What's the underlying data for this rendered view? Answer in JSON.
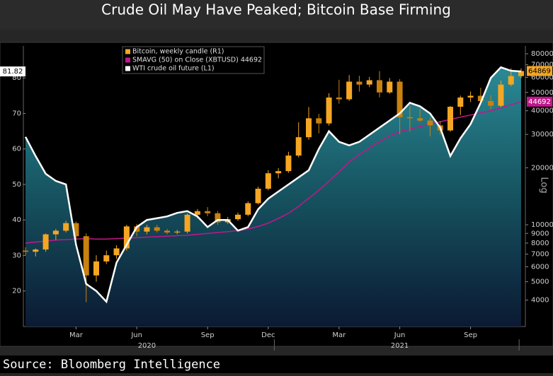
{
  "title": "Crude Oil May Have Peaked; Bitcoin Base Firming",
  "source": "Source: Bloomberg Intelligence",
  "chart_data": {
    "type": "combo",
    "categories": [
      null,
      null,
      null,
      null,
      null,
      "Mar",
      null,
      null,
      null,
      null,
      null,
      "Jun",
      null,
      null,
      null,
      null,
      null,
      null,
      "Sep",
      null,
      null,
      null,
      null,
      null,
      "Dec",
      null,
      null,
      null,
      null,
      null,
      null,
      "Mar",
      null,
      null,
      null,
      null,
      null,
      "Jun",
      null,
      null,
      null,
      null,
      null,
      null,
      "Sep",
      null,
      null,
      null,
      null,
      null
    ],
    "years": [
      "2020",
      "2021"
    ],
    "ylim": [
      10,
      89
    ],
    "yticks": [
      20,
      30,
      40,
      50,
      60,
      70,
      80
    ],
    "y2lim": [
      2900,
      88000
    ],
    "y2_scale": "log",
    "y2_label": "Log",
    "y2ticks": [
      4000,
      5000,
      6000,
      7000,
      8000,
      9000,
      10000,
      20000,
      30000,
      40000,
      50000,
      60000,
      70000,
      80000
    ],
    "series": [
      {
        "name": "WTI crude oil future (L1)",
        "type": "area",
        "axis": "y",
        "color": "#ffffff",
        "values": [
          63.4,
          58,
          53,
          51,
          50,
          33,
          22,
          20,
          17,
          28,
          33,
          38,
          40,
          40.5,
          41,
          42,
          42.5,
          41,
          38,
          40,
          40,
          37,
          38,
          43,
          46,
          48,
          50,
          52,
          54,
          60,
          65,
          62,
          61,
          62,
          64,
          66,
          68,
          70,
          73,
          72,
          70,
          66,
          58,
          63,
          67,
          73,
          80,
          83,
          82,
          81.82
        ]
      },
      {
        "name": "Bitcoin, weekly candle (R1)",
        "type": "candlestick",
        "axis": "y2",
        "color": "#f5a623",
        "open": [
          7300,
          7200,
          7400,
          8900,
          9300,
          10200,
          8700,
          5400,
          6400,
          6900,
          7500,
          9800,
          9200,
          9700,
          9300,
          9100,
          9200,
          11300,
          11800,
          11500,
          10300,
          10700,
          11300,
          13000,
          15500,
          18700,
          19200,
          23200,
          29000,
          36500,
          34300,
          47000,
          46000,
          57000,
          55000,
          58000,
          50000,
          57000,
          37000,
          36500,
          35500,
          33500,
          31500,
          42000,
          47000,
          48000,
          45000,
          42500,
          55000,
          61000
        ],
        "high": [
          7600,
          7500,
          9000,
          9500,
          10500,
          10400,
          9000,
          6900,
          7300,
          7800,
          10000,
          10100,
          10000,
          10000,
          9500,
          9400,
          11500,
          12100,
          12400,
          11800,
          11000,
          11600,
          13300,
          15900,
          19400,
          19900,
          24300,
          34800,
          41900,
          38500,
          49500,
          58300,
          61700,
          61200,
          60400,
          64800,
          59600,
          58700,
          42600,
          40900,
          36900,
          35300,
          42400,
          48100,
          50500,
          52900,
          48400,
          57800,
          66900,
          67000
        ],
        "low": [
          6900,
          6800,
          7200,
          8300,
          9100,
          8400,
          3900,
          5000,
          6200,
          6600,
          7300,
          8700,
          8900,
          9100,
          8900,
          8900,
          9000,
          10800,
          11100,
          10000,
          10100,
          10500,
          11100,
          12800,
          15200,
          17600,
          18800,
          22700,
          28100,
          30400,
          33400,
          43600,
          45100,
          50500,
          53300,
          47100,
          49200,
          30100,
          31100,
          34800,
          29300,
          29900,
          31000,
          38000,
          44500,
          43300,
          40700,
          41700,
          53900,
          59500
        ],
        "close": [
          7200,
          7400,
          8900,
          9300,
          10200,
          8700,
          5400,
          6400,
          6900,
          7500,
          9800,
          9200,
          9700,
          9300,
          9100,
          9200,
          11300,
          11800,
          11500,
          10300,
          10700,
          11300,
          13000,
          15500,
          18700,
          19200,
          23200,
          29000,
          36500,
          34300,
          47000,
          46000,
          57000,
          55000,
          58000,
          50000,
          57000,
          37000,
          36500,
          35500,
          33500,
          31500,
          42000,
          47000,
          48000,
          45000,
          42500,
          55000,
          61000,
          64869
        ]
      },
      {
        "name": "SMAVG (50)  on Close (XBTUSD) 44692",
        "type": "line",
        "axis": "y2",
        "color": "#c2178c",
        "values": [
          8000,
          8100,
          8200,
          8300,
          8350,
          8400,
          8450,
          8400,
          8400,
          8450,
          8500,
          8550,
          8600,
          8650,
          8700,
          8750,
          8800,
          8900,
          9000,
          9100,
          9200,
          9300,
          9500,
          9800,
          10200,
          10800,
          11500,
          12500,
          13800,
          15200,
          17000,
          19000,
          21500,
          23500,
          25500,
          27500,
          29500,
          31000,
          32000,
          33000,
          34000,
          35000,
          36000,
          37000,
          38000,
          39000,
          40000,
          41500,
          43000,
          44692
        ]
      }
    ]
  }
}
